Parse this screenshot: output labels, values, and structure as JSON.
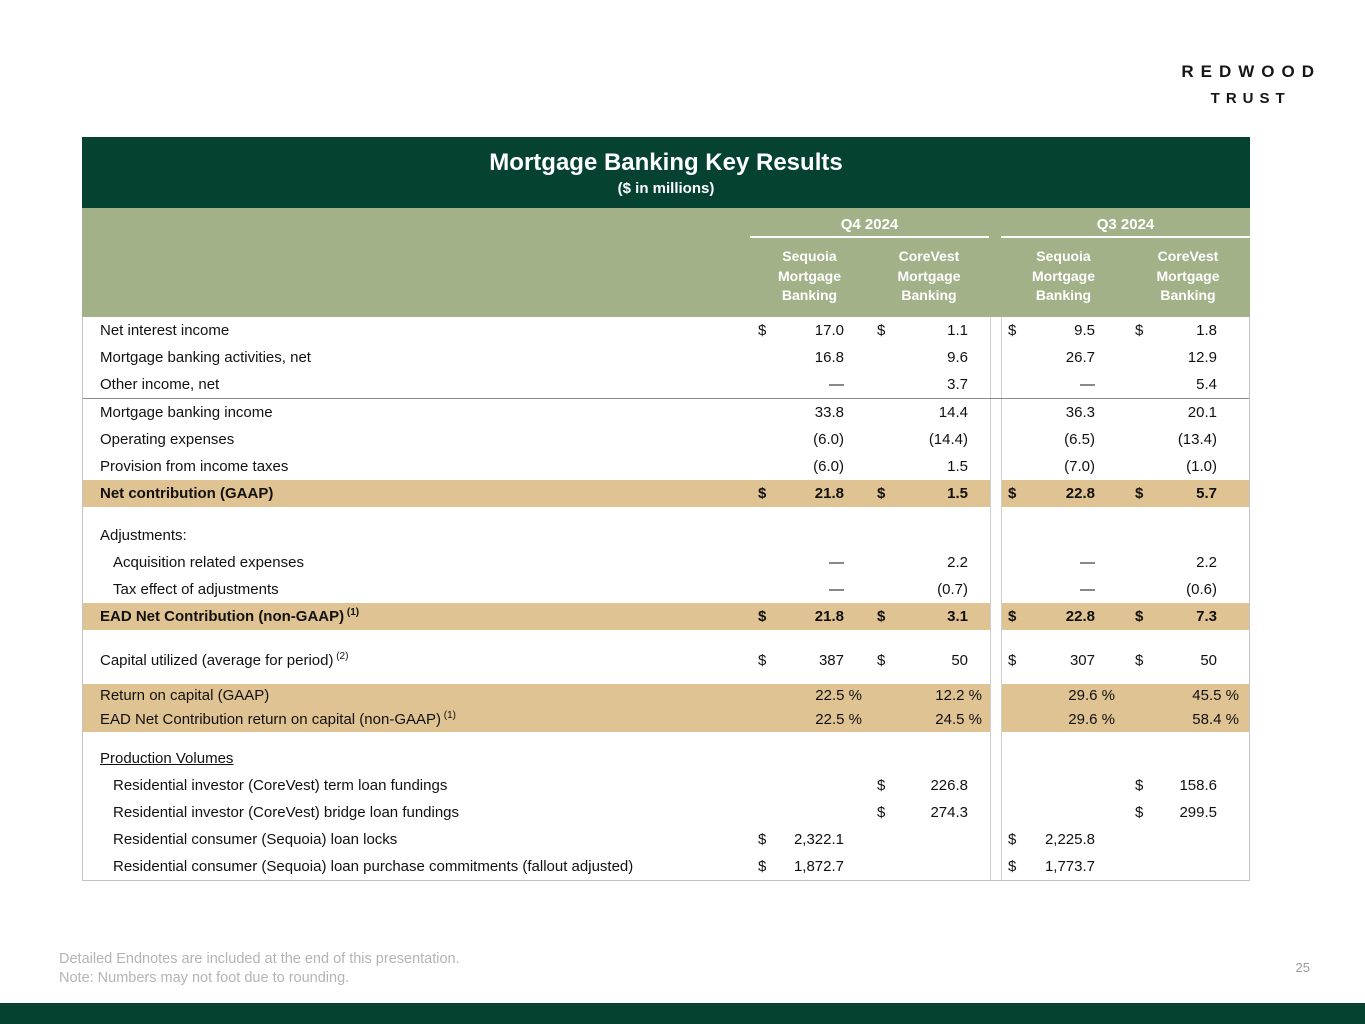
{
  "logo": {
    "line1": "REDWOOD",
    "line2": "TRUST"
  },
  "slide": {
    "title": "Mortgage Banking Key Results",
    "subtitle": "($ in millions)"
  },
  "colors": {
    "header_green": "#054232",
    "sage_band": "#a3b189",
    "highlight_tan": "#e0c392"
  },
  "table": {
    "quarters": [
      "Q4 2024",
      "Q3 2024"
    ],
    "column_headers": [
      "Sequoia\nMortgage\nBanking",
      "CoreVest\nMortgage\nBanking",
      "Sequoia\nMortgage\nBanking",
      "CoreVest\nMortgage\nBanking"
    ],
    "rows": [
      {
        "label": "Net interest income",
        "cells": [
          [
            "$",
            "17.0"
          ],
          [
            "$",
            "1.1"
          ],
          [
            "$",
            "9.5"
          ],
          [
            "$",
            "1.8"
          ]
        ]
      },
      {
        "label": "Mortgage banking activities, net",
        "cells": [
          [
            "",
            "16.8"
          ],
          [
            "",
            "9.6"
          ],
          [
            "",
            "26.7"
          ],
          [
            "",
            "12.9"
          ]
        ]
      },
      {
        "label": "Other income, net",
        "cells": [
          [
            "",
            "—"
          ],
          [
            "",
            "3.7"
          ],
          [
            "",
            "—"
          ],
          [
            "",
            "5.4"
          ]
        ]
      },
      {
        "label": "Mortgage banking income",
        "style": "topline",
        "cells": [
          [
            "",
            "33.8"
          ],
          [
            "",
            "14.4"
          ],
          [
            "",
            "36.3"
          ],
          [
            "",
            "20.1"
          ]
        ]
      },
      {
        "label": "Operating expenses",
        "cells": [
          [
            "",
            "(6.0)"
          ],
          [
            "",
            "(14.4)"
          ],
          [
            "",
            "(6.5)"
          ],
          [
            "",
            "(13.4)"
          ]
        ]
      },
      {
        "label": "Provision from income taxes",
        "cells": [
          [
            "",
            "(6.0)"
          ],
          [
            "",
            "1.5"
          ],
          [
            "",
            "(7.0)"
          ],
          [
            "",
            "(1.0)"
          ]
        ]
      },
      {
        "label": "Net contribution (GAAP)",
        "style": "highlight-bold",
        "cells": [
          [
            "$",
            "21.8"
          ],
          [
            "$",
            "1.5"
          ],
          [
            "$",
            "22.8"
          ],
          [
            "$",
            "5.7"
          ]
        ]
      },
      {
        "style": "spacer",
        "h": 15
      },
      {
        "label": "Adjustments:"
      },
      {
        "label": "Acquisition related expenses",
        "indent": true,
        "cells": [
          [
            "",
            "—"
          ],
          [
            "",
            "2.2"
          ],
          [
            "",
            "—"
          ],
          [
            "",
            "2.2"
          ]
        ]
      },
      {
        "label": "Tax effect of adjustments",
        "indent": true,
        "cells": [
          [
            "",
            "—"
          ],
          [
            "",
            "(0.7)"
          ],
          [
            "",
            "—"
          ],
          [
            "",
            "(0.6)"
          ]
        ]
      },
      {
        "label": "EAD Net Contribution (non-GAAP)",
        "sup": "(1)",
        "style": "highlight-bold",
        "cells": [
          [
            "$",
            "21.8"
          ],
          [
            "$",
            "3.1"
          ],
          [
            "$",
            "22.8"
          ],
          [
            "$",
            "7.3"
          ]
        ]
      },
      {
        "style": "spacer",
        "h": 17
      },
      {
        "label": "Capital utilized (average for period)",
        "sup": "(2)",
        "cells": [
          [
            "$",
            "387"
          ],
          [
            "$",
            "50"
          ],
          [
            "$",
            "307"
          ],
          [
            "$",
            "50"
          ]
        ]
      },
      {
        "style": "spacer",
        "h": 10
      },
      {
        "label": "Return on capital (GAAP)",
        "style": "highlight",
        "pct": true,
        "cells": [
          [
            "",
            "22.5 %"
          ],
          [
            "",
            "12.2 %"
          ],
          [
            "",
            "29.6 %"
          ],
          [
            "",
            "45.5 %"
          ]
        ]
      },
      {
        "label": "EAD Net Contribution return on capital (non-GAAP)",
        "sup": "(1)",
        "style": "highlight",
        "pct": true,
        "cells": [
          [
            "",
            "22.5 %"
          ],
          [
            "",
            "24.5 %"
          ],
          [
            "",
            "29.6 %"
          ],
          [
            "",
            "58.4 %"
          ]
        ]
      },
      {
        "style": "spacer",
        "h": 13
      },
      {
        "label": "Production Volumes",
        "underline": true
      },
      {
        "label": "Residential investor (CoreVest) term loan fundings",
        "indent": true,
        "cells": [
          [
            "",
            ""
          ],
          [
            "$",
            "226.8"
          ],
          [
            "",
            ""
          ],
          [
            "$",
            "158.6"
          ]
        ]
      },
      {
        "label": "Residential investor (CoreVest) bridge loan fundings",
        "indent": true,
        "cells": [
          [
            "",
            ""
          ],
          [
            "$",
            "274.3"
          ],
          [
            "",
            ""
          ],
          [
            "$",
            "299.5"
          ]
        ]
      },
      {
        "label": "Residential consumer (Sequoia) loan locks",
        "indent": true,
        "cells": [
          [
            "$",
            "2,322.1"
          ],
          [
            "",
            ""
          ],
          [
            "$",
            "2,225.8"
          ],
          [
            "",
            ""
          ]
        ]
      },
      {
        "label": "Residential consumer (Sequoia) loan purchase commitments (fallout adjusted)",
        "indent": true,
        "cells": [
          [
            "$",
            "1,872.7"
          ],
          [
            "",
            ""
          ],
          [
            "$",
            "1,773.7"
          ],
          [
            "",
            ""
          ]
        ]
      }
    ]
  },
  "footnotes": {
    "line1": "Detailed Endnotes are included at the end of this presentation.",
    "line2": "Note: Numbers may not foot due to rounding."
  },
  "page_number": "25"
}
